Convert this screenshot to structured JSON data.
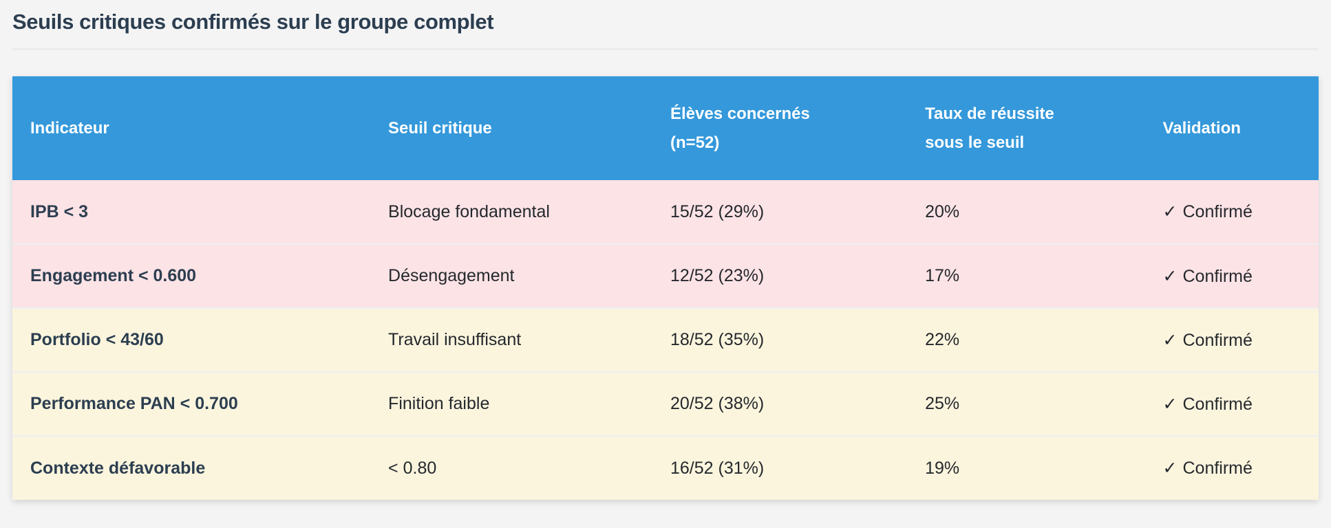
{
  "page": {
    "title": "Seuils critiques confirmés sur le groupe complet",
    "background_color": "#f4f4f5",
    "title_color": "#2c3e50"
  },
  "table": {
    "header_bg_color": "#3498db",
    "header_text_color": "#ffffff",
    "row_colors": {
      "danger": "#fce3e6",
      "warning": "#fbf5de"
    },
    "columns": [
      "Indicateur",
      "Seuil critique",
      "Élèves concernés\n(n=52)",
      "Taux de réussite\nsous le seuil",
      "Validation"
    ],
    "rows": [
      {
        "indicator": "IPB < 3",
        "threshold": "Blocage fondamental",
        "students": "15/52 (29%)",
        "success_rate": "20%",
        "check_icon": "✓",
        "validation": "Confirmé",
        "severity": "danger"
      },
      {
        "indicator": "Engagement < 0.600",
        "threshold": "Désengagement",
        "students": "12/52 (23%)",
        "success_rate": "17%",
        "check_icon": "✓",
        "validation": "Confirmé",
        "severity": "danger"
      },
      {
        "indicator": "Portfolio < 43/60",
        "threshold": "Travail insuffisant",
        "students": "18/52 (35%)",
        "success_rate": "22%",
        "check_icon": "✓",
        "validation": "Confirmé",
        "severity": "warning"
      },
      {
        "indicator": "Performance PAN < 0.700",
        "threshold": "Finition faible",
        "students": "20/52 (38%)",
        "success_rate": "25%",
        "check_icon": "✓",
        "validation": "Confirmé",
        "severity": "warning"
      },
      {
        "indicator": "Contexte défavorable",
        "threshold": "< 0.80",
        "students": "16/52 (31%)",
        "success_rate": "19%",
        "check_icon": "✓",
        "validation": "Confirmé",
        "severity": "warning"
      }
    ]
  }
}
